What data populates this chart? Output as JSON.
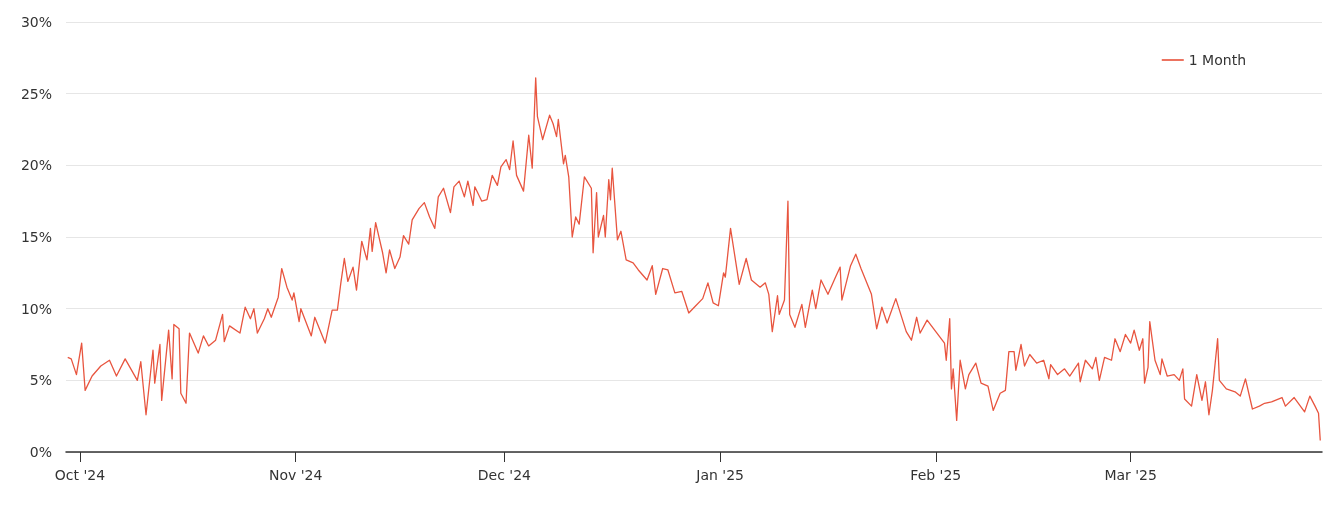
{
  "chart_data": {
    "type": "line",
    "legend": "top right",
    "grid": "y",
    "marker": "none",
    "line_style": "solid",
    "ylim": [
      0,
      30
    ],
    "yticks": [
      {
        "value": 0,
        "label": "0%"
      },
      {
        "value": 5,
        "label": "5%"
      },
      {
        "value": 10,
        "label": "10%"
      },
      {
        "value": 15,
        "label": "15%"
      },
      {
        "value": 20,
        "label": "20%"
      },
      {
        "value": 25,
        "label": "25%"
      },
      {
        "value": 30,
        "label": "30%"
      }
    ],
    "xlim": [
      "2024-09-29",
      "2025-03-28T12:00"
    ],
    "xticks": [
      {
        "value": "2024-10-01",
        "label": "Oct '24"
      },
      {
        "value": "2024-11-01",
        "label": "Nov '24"
      },
      {
        "value": "2024-12-01",
        "label": "Dec '24"
      },
      {
        "value": "2025-01-01",
        "label": "Jan '25"
      },
      {
        "value": "2025-02-01",
        "label": "Feb '25"
      },
      {
        "value": "2025-03-01",
        "label": "Mar '25"
      }
    ],
    "x": [
      "2024-09-29T06:00",
      "2024-09-29T18:00",
      "2024-09-30T12:00",
      "2024-10-01T06:00",
      "2024-10-01T18:00",
      "2024-10-02T18:00",
      "2024-10-04T00:00",
      "2024-10-05T06:00",
      "2024-10-06T06:00",
      "2024-10-07T12:00",
      "2024-10-09T06:00",
      "2024-10-09T18:00",
      "2024-10-10T12:00",
      "2024-10-11T12:00",
      "2024-10-11T18:00",
      "2024-10-12T12:00",
      "2024-10-12T18:00",
      "2024-10-13T18:00",
      "2024-10-14T06:00",
      "2024-10-14T12:00",
      "2024-10-15T06:00",
      "2024-10-15T12:00",
      "2024-10-16T06:00",
      "2024-10-16T18:00",
      "2024-10-18T00:00",
      "2024-10-18T18:00",
      "2024-10-19T12:00",
      "2024-10-20T12:00",
      "2024-10-21T12:00",
      "2024-10-21T18:00",
      "2024-10-22T12:00",
      "2024-10-24T00:00",
      "2024-10-24T18:00",
      "2024-10-25T12:00",
      "2024-10-26T00:00",
      "2024-10-26T12:00",
      "2024-10-27T12:00",
      "2024-10-28T00:00",
      "2024-10-28T12:00",
      "2024-10-29T12:00",
      "2024-10-30T00:00",
      "2024-10-30T18:00",
      "2024-10-31T12:00",
      "2024-10-31T18:00",
      "2024-11-01T12:00",
      "2024-11-01T18:00",
      "2024-11-03T06:00",
      "2024-11-03T18:00",
      "2024-11-05T06:00",
      "2024-11-06T06:00",
      "2024-11-07T00:00",
      "2024-11-07T12:00",
      "2024-11-08T00:00",
      "2024-11-08T12:00",
      "2024-11-09T06:00",
      "2024-11-09T18:00",
      "2024-11-10T12:00",
      "2024-11-11T06:00",
      "2024-11-11T18:00",
      "2024-11-12T00:00",
      "2024-11-12T12:00",
      "2024-11-13T12:00",
      "2024-11-14T00:00",
      "2024-11-14T12:00",
      "2024-11-15T06:00",
      "2024-11-16T00:00",
      "2024-11-16T12:00",
      "2024-11-17T06:00",
      "2024-11-17T18:00",
      "2024-11-18T18:00",
      "2024-11-19T12:00",
      "2024-11-20T06:00",
      "2024-11-21T00:00",
      "2024-11-21T12:00",
      "2024-11-22T06:00",
      "2024-11-23T06:00",
      "2024-11-23T18:00",
      "2024-11-24T12:00",
      "2024-11-25T06:00",
      "2024-11-25T18:00",
      "2024-11-26T12:00",
      "2024-11-26T18:00",
      "2024-11-27T18:00",
      "2024-11-28T12:00",
      "2024-11-29T06:00",
      "2024-11-30T00:00",
      "2024-11-30T12:00",
      "2024-12-01T06:00",
      "2024-12-01T18:00",
      "2024-12-02T06:00",
      "2024-12-02T18:00",
      "2024-12-03T18:00",
      "2024-12-04T12:00",
      "2024-12-05T00:00",
      "2024-12-05T12:00",
      "2024-12-05T18:00",
      "2024-12-06T12:00",
      "2024-12-07T12:00",
      "2024-12-08T00:00",
      "2024-12-08T12:00",
      "2024-12-08T18:00",
      "2024-12-09T12:00",
      "2024-12-09T18:00",
      "2024-12-10T06:00",
      "2024-12-10T18:00",
      "2024-12-11T06:00",
      "2024-12-11T18:00",
      "2024-12-12T12:00",
      "2024-12-13T12:00",
      "2024-12-13T18:00",
      "2024-12-14T06:00",
      "2024-12-14T12:00",
      "2024-12-15T06:00",
      "2024-12-15T12:00",
      "2024-12-16T00:00",
      "2024-12-16T06:00",
      "2024-12-16T12:00",
      "2024-12-17T06:00",
      "2024-12-17T18:00",
      "2024-12-18T12:00",
      "2024-12-19T12:00",
      "2024-12-20T06:00",
      "2024-12-21T12:00",
      "2024-12-22T06:00",
      "2024-12-22T18:00",
      "2024-12-23T18:00",
      "2024-12-24T12:00",
      "2024-12-25T12:00",
      "2024-12-26T12:00",
      "2024-12-27T12:00",
      "2024-12-28T12:00",
      "2024-12-29T12:00",
      "2024-12-30T06:00",
      "2024-12-31T00:00",
      "2024-12-31T18:00",
      "2025-01-01T12:00",
      "2025-01-01T18:00",
      "2025-01-02T12:00",
      "2025-01-03T18:00",
      "2025-01-04T18:00",
      "2025-01-05T12:00",
      "2025-01-06T18:00",
      "2025-01-07T12:00",
      "2025-01-08T00:00",
      "2025-01-08T12:00",
      "2025-01-09T06:00",
      "2025-01-09T12:00",
      "2025-01-10T06:00",
      "2025-01-10T18:00",
      "2025-01-11T00:00",
      "2025-01-11T18:00",
      "2025-01-12T18:00",
      "2025-01-13T06:00",
      "2025-01-14T06:00",
      "2025-01-14T18:00",
      "2025-01-15T12:00",
      "2025-01-16T12:00",
      "2025-01-17T12:00",
      "2025-01-18T06:00",
      "2025-01-18T12:00",
      "2025-01-19T18:00",
      "2025-01-20T12:00",
      "2025-01-21T06:00",
      "2025-01-22T18:00",
      "2025-01-23T12:00",
      "2025-01-24T06:00",
      "2025-01-25T00:00",
      "2025-01-26T06:00",
      "2025-01-27T18:00",
      "2025-01-28T12:00",
      "2025-01-29T06:00",
      "2025-01-29T18:00",
      "2025-01-30T18:00",
      "2025-02-01T00:00",
      "2025-02-02T06:00",
      "2025-02-02T12:00",
      "2025-02-03T00:00",
      "2025-02-03T06:00",
      "2025-02-03T12:00",
      "2025-02-04T00:00",
      "2025-02-04T12:00",
      "2025-02-05T06:00",
      "2025-02-05T18:00",
      "2025-02-06T18:00",
      "2025-02-07T12:00",
      "2025-02-08T12:00",
      "2025-02-09T06:00",
      "2025-02-10T06:00",
      "2025-02-11T00:00",
      "2025-02-11T12:00",
      "2025-02-12T06:00",
      "2025-02-12T12:00",
      "2025-02-13T06:00",
      "2025-02-13T18:00",
      "2025-02-14T12:00",
      "2025-02-15T12:00",
      "2025-02-16T12:00",
      "2025-02-17T06:00",
      "2025-02-17T12:00",
      "2025-02-18T12:00",
      "2025-02-19T12:00",
      "2025-02-20T06:00",
      "2025-02-21T12:00",
      "2025-02-21T18:00",
      "2025-02-22T12:00",
      "2025-02-23T12:00",
      "2025-02-24T00:00",
      "2025-02-24T12:00",
      "2025-02-25T06:00",
      "2025-02-26T06:00",
      "2025-02-26T18:00",
      "2025-02-27T12:00",
      "2025-02-28T06:00",
      "2025-03-01T00:00",
      "2025-03-01T12:00",
      "2025-03-02T06:00",
      "2025-03-02T18:00",
      "2025-03-03T00:00",
      "2025-03-03T12:00",
      "2025-03-03T18:00",
      "2025-03-04T12:00",
      "2025-03-05T06:00",
      "2025-03-05T12:00",
      "2025-03-06T06:00",
      "2025-03-07T06:00",
      "2025-03-08T00:00",
      "2025-03-08T12:00",
      "2025-03-08T18:00",
      "2025-03-09T18:00",
      "2025-03-10T12:00",
      "2025-03-11T06:00",
      "2025-03-11T18:00",
      "2025-03-12T06:00",
      "2025-03-12T18:00",
      "2025-03-13T12:00",
      "2025-03-13T18:00",
      "2025-03-14T18:00",
      "2025-03-16T00:00",
      "2025-03-16T18:00",
      "2025-03-17T12:00",
      "2025-03-18T12:00",
      "2025-03-19T12:00",
      "2025-03-20T06:00",
      "2025-03-21T06:00",
      "2025-03-22T18:00",
      "2025-03-23T06:00",
      "2025-03-24T12:00",
      "2025-03-26T00:00",
      "2025-03-26T18:00",
      "2025-03-27T12:00",
      "2025-03-28T00:00",
      "2025-03-28T06:00"
    ],
    "series": [
      {
        "name": "1 Month",
        "color": "#e8553f",
        "values": [
          6.6,
          6.5,
          5.4,
          7.6,
          4.3,
          5.3,
          6.0,
          6.4,
          5.3,
          6.5,
          5.0,
          6.3,
          2.6,
          7.1,
          4.8,
          7.5,
          3.6,
          8.5,
          5.1,
          8.9,
          8.6,
          4.1,
          3.4,
          8.3,
          6.9,
          8.1,
          7.4,
          7.8,
          9.6,
          7.7,
          8.8,
          8.3,
          10.1,
          9.3,
          10.0,
          8.3,
          9.3,
          10.0,
          9.4,
          10.8,
          12.8,
          11.5,
          10.6,
          11.1,
          9.1,
          10.0,
          8.1,
          9.4,
          7.6,
          9.9,
          9.9,
          11.8,
          13.5,
          11.9,
          12.9,
          11.3,
          14.7,
          13.4,
          15.6,
          14.0,
          16.0,
          13.9,
          12.5,
          14.1,
          12.8,
          13.6,
          15.1,
          14.5,
          16.2,
          17.0,
          17.4,
          16.4,
          15.6,
          17.8,
          18.4,
          16.7,
          18.5,
          18.9,
          17.8,
          18.9,
          17.2,
          18.5,
          17.5,
          17.6,
          19.3,
          18.6,
          19.9,
          20.4,
          19.7,
          21.7,
          19.3,
          18.2,
          22.1,
          19.8,
          26.1,
          23.4,
          21.8,
          23.5,
          22.9,
          22.0,
          23.2,
          20.1,
          20.7,
          19.2,
          15.0,
          16.4,
          15.9,
          19.2,
          18.4,
          13.9,
          18.1,
          15.0,
          16.5,
          15.0,
          19.0,
          17.6,
          19.8,
          14.8,
          15.4,
          13.4,
          13.2,
          12.7,
          12.0,
          13.0,
          11.0,
          12.8,
          12.7,
          11.1,
          11.2,
          9.7,
          10.2,
          10.7,
          11.8,
          10.4,
          10.2,
          12.5,
          12.2,
          15.6,
          11.7,
          13.5,
          12.0,
          11.5,
          11.8,
          11.0,
          8.4,
          10.9,
          9.6,
          10.6,
          17.5,
          9.6,
          8.7,
          10.3,
          8.7,
          11.3,
          10.0,
          12.0,
          11.0,
          12.1,
          12.9,
          10.6,
          13.0,
          13.8,
          12.8,
          11.0,
          8.6,
          10.1,
          9.0,
          10.7,
          8.4,
          7.8,
          9.4,
          8.3,
          9.2,
          8.4,
          7.6,
          6.4,
          9.3,
          4.4,
          5.8,
          2.2,
          6.4,
          4.4,
          5.4,
          6.2,
          4.8,
          4.6,
          2.9,
          4.1,
          4.3,
          7.0,
          7.0,
          5.7,
          7.5,
          6.0,
          6.8,
          6.2,
          6.4,
          5.1,
          6.1,
          5.4,
          5.8,
          5.3,
          6.2,
          4.9,
          6.4,
          5.8,
          6.6,
          5.0,
          6.6,
          6.4,
          7.9,
          7.0,
          8.2,
          7.6,
          8.5,
          7.1,
          7.9,
          4.8,
          5.9,
          9.1,
          6.4,
          5.4,
          6.5,
          5.3,
          5.4,
          5.0,
          5.8,
          3.7,
          3.2,
          5.4,
          3.6,
          4.9,
          2.6,
          4.3,
          7.9,
          5.0,
          4.4,
          4.2,
          3.9,
          5.1,
          3.0,
          3.2,
          3.4,
          3.5,
          3.8,
          3.2,
          3.8,
          2.8,
          3.9,
          3.2,
          2.7,
          0.8
        ]
      }
    ]
  }
}
